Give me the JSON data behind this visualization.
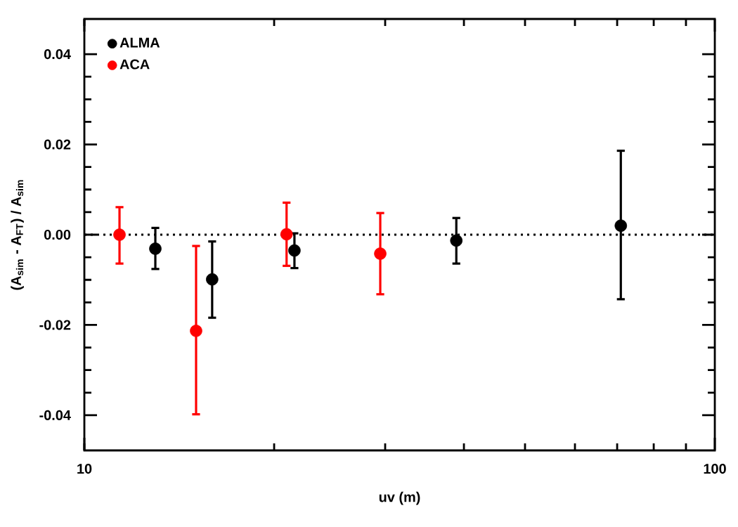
{
  "chart_data": {
    "type": "scatter",
    "xlabel": "uv (m)",
    "ylabel": "(A$_{sim}$ - A$_{FT}$) / A$_{sim}$",
    "log": "x",
    "xlim": [
      10,
      100
    ],
    "xticks": [
      10,
      100
    ],
    "ylim": [
      -0.0478,
      0.0478
    ],
    "yticks": [
      {
        "value": -0.04,
        "label": "-0.04"
      },
      {
        "value": -0.02,
        "label": "-0.02"
      },
      {
        "value": 0,
        "label": "0.00"
      },
      {
        "value": 0.02,
        "label": "0.02"
      },
      {
        "value": 0.04,
        "label": "0.04"
      }
    ],
    "grid": false,
    "legend": "top left",
    "ref_lines": [
      {
        "axis": "y",
        "value": 0,
        "line_style": "dotted",
        "color": "#000000"
      }
    ],
    "series": [
      {
        "name": "ALMA",
        "color": "#000000",
        "x": [
          12.96,
          15.95,
          21.54,
          38.91,
          70.95
        ],
        "values": [
          -0.0031,
          -0.0099,
          -0.0035,
          -0.0013,
          0.002
        ],
        "errors": [
          [
            -0.0076,
            0.0015
          ],
          [
            -0.0184,
            -0.0015
          ],
          [
            -0.0074,
            0.0003
          ],
          [
            -0.0064,
            0.0037
          ],
          [
            -0.0143,
            0.0186
          ]
        ]
      },
      {
        "name": "ACA",
        "color": "#ff0000",
        "x": [
          11.37,
          15.04,
          20.93,
          29.47
        ],
        "values": [
          0.0,
          -0.0213,
          0.0001,
          -0.0042
        ],
        "errors": [
          [
            -0.0064,
            0.0061
          ],
          [
            -0.0398,
            -0.0025
          ],
          [
            -0.0069,
            0.0071
          ],
          [
            -0.0132,
            0.0048
          ]
        ]
      }
    ]
  }
}
